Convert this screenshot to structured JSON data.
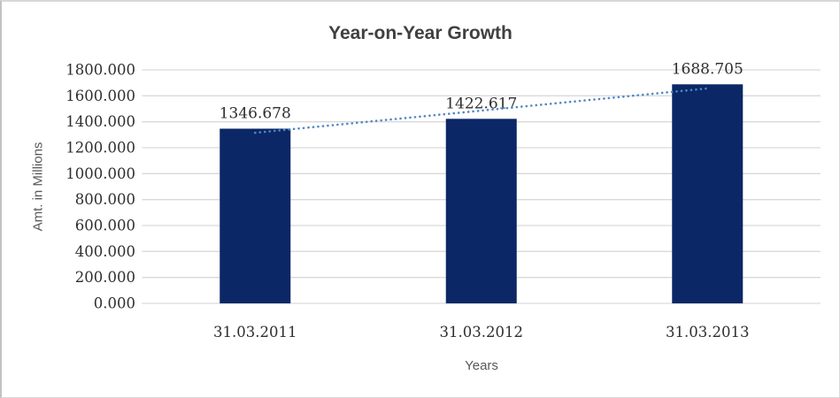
{
  "chart_data": {
    "type": "bar",
    "title": "Year-on-Year Growth",
    "xlabel": "Years",
    "ylabel": "Amt. in Millions",
    "categories": [
      "31.03.2011",
      "31.03.2012",
      "31.03.2013"
    ],
    "series": [
      {
        "name": "Amt. in Millions",
        "type": "bar",
        "values": [
          1346.678,
          1422.617,
          1688.705
        ]
      }
    ],
    "data_labels": [
      "1346.678",
      "1422.617",
      "1688.705"
    ],
    "ylim": [
      0,
      1800
    ],
    "ytick_step": 200,
    "ytick_labels": [
      "0.000",
      "200.000",
      "400.000",
      "600.000",
      "800.000",
      "1000.000",
      "1200.000",
      "1400.000",
      "1600.000",
      "1800.000"
    ],
    "grid": "horizontal",
    "legend": "none",
    "trendline": {
      "type": "linear",
      "style": "dotted"
    },
    "colors": {
      "bar": "#0b2766",
      "trendline": "#4e87c7",
      "gridline": "#d9d9d9",
      "title_text": "#404040",
      "axis_title_text": "#595959",
      "tick_text": "#2e2e2e"
    }
  }
}
